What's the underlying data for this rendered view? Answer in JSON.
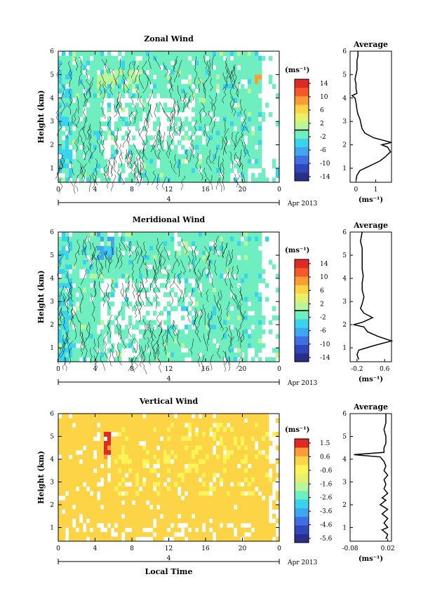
{
  "figure": {
    "panels": [
      {
        "id": "zonal",
        "title": "Zonal Wind",
        "ylabel": "Height (km)",
        "xticks": [
          "0",
          "4",
          "8",
          "12",
          "16",
          "20",
          "0"
        ],
        "yticks": [
          "1",
          "2",
          "3",
          "4",
          "5",
          "6"
        ],
        "date_mark": "4",
        "date_label": "Apr 2013",
        "colorbar": {
          "unit": "(ms⁻¹)",
          "ticks": [
            "14",
            "10",
            "6",
            "2",
            "-2",
            "-6",
            "-10",
            "-14"
          ]
        },
        "avg": {
          "title": "Average",
          "unit": "(ms⁻¹)",
          "xticks": [
            "0",
            "1"
          ],
          "yticks": [
            "1",
            "2",
            "3",
            "4",
            "5",
            "6"
          ]
        }
      },
      {
        "id": "meridional",
        "title": "Meridional Wind",
        "ylabel": "Height (km)",
        "xticks": [
          "0",
          "4",
          "8",
          "12",
          "16",
          "20",
          "0"
        ],
        "yticks": [
          "1",
          "2",
          "3",
          "4",
          "5",
          "6"
        ],
        "date_mark": "4",
        "date_label": "Apr 2013",
        "colorbar": {
          "unit": "(ms⁻¹)",
          "ticks": [
            "14",
            "10",
            "6",
            "2",
            "-2",
            "-6",
            "-10",
            "-14"
          ]
        },
        "avg": {
          "title": "Average",
          "unit": "(ms⁻¹)",
          "xticks": [
            "-0.2",
            "0.6"
          ],
          "yticks": [
            "1",
            "2",
            "3",
            "4",
            "5",
            "6"
          ]
        }
      },
      {
        "id": "vertical",
        "title": "Vertical Wind",
        "ylabel": "Height (km)",
        "xticks": [
          "0",
          "4",
          "8",
          "12",
          "16",
          "20",
          "0"
        ],
        "yticks": [
          "1",
          "2",
          "3",
          "4",
          "5",
          "6"
        ],
        "date_mark": "4",
        "date_label": "Apr 2013",
        "xlabel": "Local Time",
        "colorbar": {
          "unit": "(ms⁻¹)",
          "ticks": [
            "1.5",
            "0.6",
            "-0.6",
            "-1.6",
            "-2.6",
            "-3.6",
            "-4.6",
            "-5.6"
          ]
        },
        "avg": {
          "title": "Average",
          "unit": "(ms⁻¹)",
          "xticks": [
            "-0.08",
            "0.02"
          ],
          "yticks": [
            "1",
            "2",
            "3",
            "4",
            "5",
            "6"
          ]
        }
      }
    ]
  },
  "chart_data": [
    {
      "type": "heatmap",
      "title": "Zonal Wind",
      "xlabel": "",
      "ylabel": "Height (km)",
      "xlim": [
        0,
        24
      ],
      "ylim": [
        0.4,
        6.0
      ],
      "color_range": [
        -16,
        16
      ],
      "colorbar_ticks": [
        14,
        10,
        6,
        2,
        -2,
        -6,
        -10,
        -14
      ],
      "colors": [
        "#2b2f8c",
        "#2f47b8",
        "#3f6fe0",
        "#3fa7f0",
        "#39d3ee",
        "#6fefc0",
        "#b9f59a",
        "#e6f06a",
        "#fcd445",
        "#fb9d34",
        "#f5582b",
        "#e02a25"
      ],
      "dominant_color": "#6fefc0",
      "average_profile": {
        "xlim": [
          -0.3,
          1.8
        ],
        "heights": [
          0.5,
          0.7,
          0.9,
          1.1,
          1.3,
          1.5,
          1.7,
          1.9,
          2.0,
          2.1,
          2.3,
          2.5,
          2.7,
          2.9,
          3.1,
          3.3,
          3.5,
          3.8,
          4.0,
          4.1,
          4.2,
          4.4,
          4.6,
          4.8,
          5.0,
          5.2,
          5.4,
          5.6,
          5.8,
          6.0
        ],
        "values": [
          0.0,
          0.05,
          0.2,
          0.7,
          1.2,
          1.5,
          1.75,
          1.6,
          1.3,
          1.8,
          0.9,
          0.45,
          0.3,
          0.25,
          0.2,
          0.1,
          0.05,
          0.0,
          -0.05,
          -0.2,
          0.05,
          0.0,
          0.0,
          -0.05,
          0.0,
          0.05,
          0.05,
          0.05,
          0.1,
          0.1
        ]
      }
    },
    {
      "type": "heatmap",
      "title": "Meridional Wind",
      "xlabel": "",
      "ylabel": "Height (km)",
      "xlim": [
        0,
        24
      ],
      "ylim": [
        0.4,
        6.0
      ],
      "color_range": [
        -16,
        16
      ],
      "colorbar_ticks": [
        14,
        10,
        6,
        2,
        -2,
        -6,
        -10,
        -14
      ],
      "colors": [
        "#2b2f8c",
        "#2f47b8",
        "#3f6fe0",
        "#3fa7f0",
        "#39d3ee",
        "#6fefc0",
        "#b9f59a",
        "#e6f06a",
        "#fcd445",
        "#fb9d34",
        "#f5582b",
        "#e02a25"
      ],
      "dominant_color": "#6fefc0",
      "average_profile": {
        "xlim": [
          -0.4,
          0.8
        ],
        "heights": [
          0.5,
          0.7,
          0.9,
          1.1,
          1.3,
          1.5,
          1.7,
          1.9,
          2.0,
          2.1,
          2.3,
          2.5,
          2.7,
          2.9,
          3.2,
          3.5,
          3.8,
          4.1,
          4.4,
          4.7,
          5.0,
          5.3,
          5.6,
          6.0
        ],
        "values": [
          -0.15,
          -0.2,
          -0.15,
          0.3,
          0.8,
          0.4,
          0.1,
          0.0,
          -0.3,
          -0.05,
          0.25,
          0.0,
          -0.1,
          -0.05,
          0.0,
          -0.05,
          -0.05,
          -0.02,
          -0.05,
          -0.05,
          -0.05,
          -0.05,
          -0.1,
          -0.05
        ]
      }
    },
    {
      "type": "heatmap",
      "title": "Vertical Wind",
      "xlabel": "Local Time",
      "ylabel": "Height (km)",
      "xlim": [
        0,
        24
      ],
      "ylim": [
        0.4,
        6.0
      ],
      "color_range": [
        -6.1,
        2.0
      ],
      "colorbar_ticks": [
        1.5,
        0.6,
        -0.6,
        -1.6,
        -2.6,
        -3.6,
        -4.6,
        -5.6
      ],
      "colors": [
        "#2b2f8c",
        "#2f47b8",
        "#3f6fe0",
        "#3fa7f0",
        "#39d3ee",
        "#6fefc0",
        "#b9f59a",
        "#e6f06a",
        "#fff35a",
        "#fcd445",
        "#fb9d34",
        "#e02a25"
      ],
      "dominant_color": "#fcd445",
      "average_profile": {
        "xlim": [
          -0.08,
          0.03
        ],
        "heights": [
          0.5,
          0.7,
          0.9,
          1.0,
          1.2,
          1.4,
          1.6,
          1.8,
          2.0,
          2.2,
          2.3,
          2.5,
          2.7,
          2.9,
          3.1,
          3.3,
          3.5,
          3.7,
          3.9,
          4.1,
          4.2,
          4.3,
          4.5,
          4.7,
          5.0,
          5.3,
          5.6,
          6.0
        ],
        "values": [
          0.015,
          0.02,
          0.005,
          0.02,
          0.01,
          0.02,
          0.005,
          0.02,
          0.0,
          0.015,
          0.005,
          0.02,
          0.01,
          0.015,
          0.01,
          0.02,
          0.01,
          0.015,
          0.01,
          0.0,
          -0.07,
          0.01,
          0.01,
          0.015,
          0.015,
          0.01,
          0.015,
          0.015
        ]
      }
    }
  ]
}
